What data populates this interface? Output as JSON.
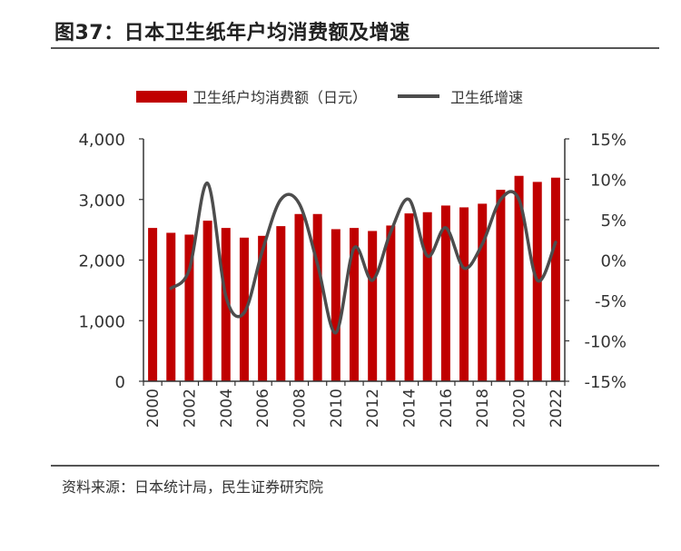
{
  "figure": {
    "title": "图37：日本卫生纸年户均消费额及增速",
    "source": "资料来源：日本统计局，民生证券研究院"
  },
  "legend": {
    "bar_label": "卫生纸户均消费额（日元）",
    "line_label": "卫生纸增速"
  },
  "colors": {
    "bar": "#c00000",
    "line": "#4d4d4d",
    "axis": "#333333"
  },
  "chart_data": {
    "type": "bar+line",
    "title": "图37：日本卫生纸年户均消费额及增速",
    "categories": [
      "2000",
      "2001",
      "2002",
      "2003",
      "2004",
      "2005",
      "2006",
      "2007",
      "2008",
      "2009",
      "2010",
      "2011",
      "2012",
      "2013",
      "2014",
      "2015",
      "2016",
      "2017",
      "2018",
      "2019",
      "2020",
      "2021",
      "2022"
    ],
    "x_tick_labels": [
      "2000",
      "2002",
      "2004",
      "2006",
      "2008",
      "2010",
      "2012",
      "2014",
      "2016",
      "2018",
      "2020",
      "2022"
    ],
    "series": [
      {
        "name": "卫生纸户均消费额（日元）",
        "type": "bar",
        "axis": "left",
        "values": [
          2530,
          2450,
          2420,
          2650,
          2530,
          2370,
          2400,
          2560,
          2760,
          2760,
          2510,
          2530,
          2480,
          2570,
          2770,
          2790,
          2900,
          2870,
          2930,
          3160,
          3390,
          3290,
          3360
        ]
      },
      {
        "name": "卫生纸增速",
        "type": "line",
        "axis": "right",
        "unit": "%",
        "values": [
          null,
          -3.5,
          -1.2,
          9.5,
          -4.5,
          -6.5,
          1.2,
          7.5,
          7.0,
          -0.5,
          -9.0,
          1.5,
          -2.5,
          3.5,
          7.5,
          0.5,
          4.0,
          -1.0,
          2.0,
          7.5,
          7.5,
          -2.5,
          2.2
        ]
      }
    ],
    "y_left": {
      "range": [
        0,
        4000
      ],
      "ticks": [
        0,
        1000,
        2000,
        3000,
        4000
      ],
      "tick_labels": [
        "0",
        "1,000",
        "2,000",
        "3,000",
        "4,000"
      ]
    },
    "y_right": {
      "range": [
        -15,
        15
      ],
      "ticks": [
        -15,
        -10,
        -5,
        0,
        5,
        10,
        15
      ],
      "tick_labels": [
        "-15%",
        "-10%",
        "-5%",
        "0%",
        "5%",
        "10%",
        "15%"
      ]
    },
    "legend_position": "top",
    "grid": false
  }
}
